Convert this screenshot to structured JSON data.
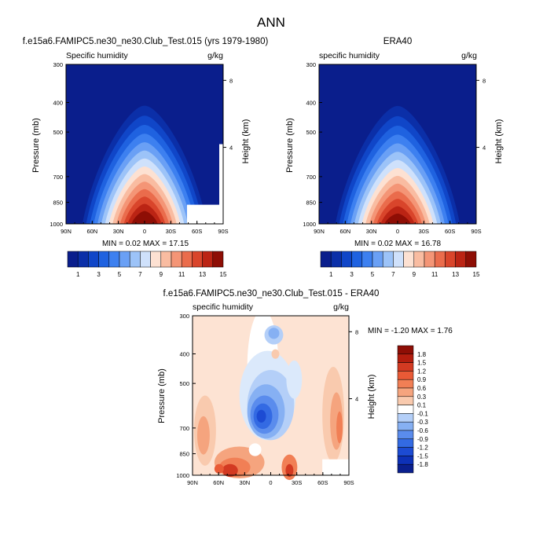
{
  "page_title": "ANN",
  "chart_data": [
    {
      "type": "heatmap",
      "title": "f.e15a6.FAMIPC5.ne30_ne30.Club_Test.015 (yrs 1979-1980)",
      "subtitle_left": "Specific humidity",
      "subtitle_right": "g/kg",
      "ylabel": "Pressure (mb)",
      "ylabel_right": "Height (km)",
      "x_ticks": [
        "90N",
        "60N",
        "30N",
        "0",
        "30S",
        "60S",
        "90S"
      ],
      "y_ticks": [
        "300",
        "400",
        "500",
        "700",
        "850",
        "1000"
      ],
      "y_ticks_right": [
        "8",
        "4"
      ],
      "stats": "MIN =  0.02  MAX =  17.15",
      "colorbar_labels": [
        "1",
        "3",
        "5",
        "7",
        "9",
        "11",
        "13",
        "15"
      ],
      "peak_value": 17.15
    },
    {
      "type": "heatmap",
      "title": "ERA40",
      "subtitle_left": "specific humidity",
      "subtitle_right": "g/kg",
      "ylabel": "Pressure (mb)",
      "ylabel_right": "Height (km)",
      "x_ticks": [
        "90N",
        "60N",
        "30N",
        "0",
        "30S",
        "60S",
        "90S"
      ],
      "y_ticks": [
        "300",
        "400",
        "500",
        "700",
        "850",
        "1000"
      ],
      "y_ticks_right": [
        "8",
        "4"
      ],
      "stats": "MIN =  0.02  MAX =  16.78",
      "colorbar_labels": [
        "1",
        "3",
        "5",
        "7",
        "9",
        "11",
        "13",
        "15"
      ],
      "peak_value": 16.78
    },
    {
      "type": "heatmap",
      "title": "f.e15a6.FAMIPC5.ne30_ne30.Club_Test.015 - ERA40",
      "subtitle_left": "specific humidity",
      "subtitle_right": "g/kg",
      "ylabel": "Pressure (mb)",
      "ylabel_right": "Height (km)",
      "x_ticks": [
        "90N",
        "60N",
        "30N",
        "0",
        "30S",
        "60S",
        "90S"
      ],
      "y_ticks": [
        "300",
        "400",
        "500",
        "700",
        "850",
        "1000"
      ],
      "y_ticks_right": [
        "8",
        "4"
      ],
      "stats": "MIN = -1.20  MAX =  1.76",
      "colorbar_labels": [
        "1.8",
        "1.5",
        "1.2",
        "0.9",
        "0.6",
        "0.3",
        "0.1",
        "-0.1",
        "-0.3",
        "-0.6",
        "-0.9",
        "-1.2",
        "-1.5",
        "-1.8"
      ]
    }
  ],
  "colors": {
    "humidity_scale": [
      "#0a1e8c",
      "#0b2fa8",
      "#1046c8",
      "#1f62e0",
      "#3d80f0",
      "#6aa0f5",
      "#9cc3f8",
      "#cfe1fb",
      "#fde1d2",
      "#f9bca1",
      "#f49576",
      "#ea6c4c",
      "#d9452b",
      "#bb2414",
      "#8e0e05"
    ],
    "diff_scale": [
      "#8e0e05",
      "#b31d0e",
      "#d33a22",
      "#e95a36",
      "#f17f55",
      "#f5a47e",
      "#f9caae",
      "#fde3d3",
      "#ffffff",
      "#dbe9fb",
      "#b4cff8",
      "#86b0f3",
      "#5a8ced",
      "#336ae3",
      "#1c4bd3",
      "#0d31b7",
      "#0a1f8e"
    ],
    "missing": "#ffffff"
  }
}
